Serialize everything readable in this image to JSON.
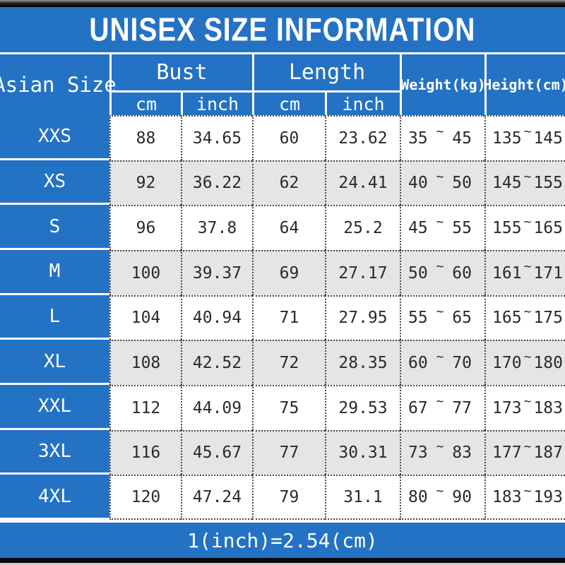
{
  "title": "UNISEX SIZE INFORMATION",
  "footer_note": "1(inch)=2.54(cm)",
  "tilde": "~",
  "colors": {
    "blue": "#2472c4",
    "alt_row_gray": "#e6e5e5",
    "bar_black": "#0a0a0a",
    "text_dark": "#2a2a2a",
    "text_white": "#ffffff"
  },
  "header": {
    "corner": "Asian Size",
    "bust": "Bust",
    "length": "Length",
    "cm": "cm",
    "inch": "inch",
    "weight": "Weight(kg)",
    "height": "Height(cm)"
  },
  "rows": [
    {
      "size": "XXS",
      "bust_cm": "88",
      "bust_inch": "34.65",
      "len_cm": "60",
      "len_inch": "23.62",
      "wt_min": "35",
      "wt_max": "45",
      "ht_min": "135",
      "ht_max": "145"
    },
    {
      "size": "XS",
      "bust_cm": "92",
      "bust_inch": "36.22",
      "len_cm": "62",
      "len_inch": "24.41",
      "wt_min": "40",
      "wt_max": "50",
      "ht_min": "145",
      "ht_max": "155"
    },
    {
      "size": "S",
      "bust_cm": "96",
      "bust_inch": "37.8",
      "len_cm": "64",
      "len_inch": "25.2",
      "wt_min": "45",
      "wt_max": "55",
      "ht_min": "155",
      "ht_max": "165"
    },
    {
      "size": "M",
      "bust_cm": "100",
      "bust_inch": "39.37",
      "len_cm": "69",
      "len_inch": "27.17",
      "wt_min": "50",
      "wt_max": "60",
      "ht_min": "161",
      "ht_max": "171"
    },
    {
      "size": "L",
      "bust_cm": "104",
      "bust_inch": "40.94",
      "len_cm": "71",
      "len_inch": "27.95",
      "wt_min": "55",
      "wt_max": "65",
      "ht_min": "165",
      "ht_max": "175"
    },
    {
      "size": "XL",
      "bust_cm": "108",
      "bust_inch": "42.52",
      "len_cm": "72",
      "len_inch": "28.35",
      "wt_min": "60",
      "wt_max": "70",
      "ht_min": "170",
      "ht_max": "180"
    },
    {
      "size": "XXL",
      "bust_cm": "112",
      "bust_inch": "44.09",
      "len_cm": "75",
      "len_inch": "29.53",
      "wt_min": "67",
      "wt_max": "77",
      "ht_min": "173",
      "ht_max": "183"
    },
    {
      "size": "3XL",
      "bust_cm": "116",
      "bust_inch": "45.67",
      "len_cm": "77",
      "len_inch": "30.31",
      "wt_min": "73",
      "wt_max": "83",
      "ht_min": "177",
      "ht_max": "187"
    },
    {
      "size": "4XL",
      "bust_cm": "120",
      "bust_inch": "47.24",
      "len_cm": "79",
      "len_inch": "31.1",
      "wt_min": "80",
      "wt_max": "90",
      "ht_min": "183",
      "ht_max": "193"
    }
  ],
  "chart_data": {
    "type": "table",
    "title": "UNISEX SIZE INFORMATION",
    "columns": [
      "Asian Size",
      "Bust cm",
      "Bust inch",
      "Length cm",
      "Length inch",
      "Weight(kg)",
      "Height(cm)"
    ],
    "rows": [
      [
        "XXS",
        88,
        34.65,
        60,
        23.62,
        "35~45",
        "135~145"
      ],
      [
        "XS",
        92,
        36.22,
        62,
        24.41,
        "40~50",
        "145~155"
      ],
      [
        "S",
        96,
        37.8,
        64,
        25.2,
        "45~55",
        "155~165"
      ],
      [
        "M",
        100,
        39.37,
        69,
        27.17,
        "50~60",
        "161~171"
      ],
      [
        "L",
        104,
        40.94,
        71,
        27.95,
        "55~65",
        "165~175"
      ],
      [
        "XL",
        108,
        42.52,
        72,
        28.35,
        "60~70",
        "170~180"
      ],
      [
        "XXL",
        112,
        44.09,
        75,
        29.53,
        "67~77",
        "173~183"
      ],
      [
        "3XL",
        116,
        45.67,
        77,
        30.31,
        "73~83",
        "177~187"
      ],
      [
        "4XL",
        120,
        47.24,
        79,
        31.1,
        "80~90",
        "183~193"
      ]
    ],
    "note": "1(inch)=2.54(cm)"
  }
}
